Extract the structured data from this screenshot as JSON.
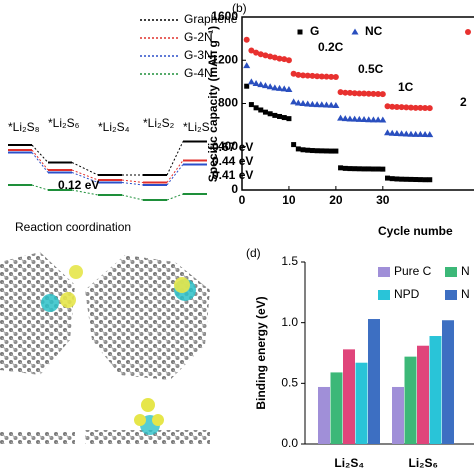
{
  "chart_data": [
    {
      "type": "levels",
      "xlabel": "Reaction coordination",
      "categories": [
        "*Li₂S₈",
        "*Li₂S₆",
        "*Li₂S₄",
        "*Li₂S₂",
        "*Li₂S"
      ],
      "ylim": [
        -1.5,
        0.3
      ],
      "series": [
        {
          "name": "Graphene",
          "color": "#000000",
          "values": [
            -0.2,
            -0.55,
            -0.8,
            -0.8,
            -0.13
          ]
        },
        {
          "name": "G-2N",
          "color": "#e0302c",
          "values": [
            -0.3,
            -0.7,
            -0.9,
            -0.95,
            -0.51
          ]
        },
        {
          "name": "G-3N",
          "color": "#2b4fc9",
          "values": [
            -0.35,
            -0.75,
            -0.95,
            -1.0,
            -0.59
          ]
        },
        {
          "name": "G-4N",
          "color": "#1e8f3a",
          "values": [
            -1.0,
            -1.1,
            -1.2,
            -1.3,
            -1.18
          ]
        }
      ],
      "annotations": [
        {
          "text": "0.67 eV",
          "color": "#000000"
        },
        {
          "text": "0.44 eV",
          "color": "#e0302c"
        },
        {
          "text": "0.41 eV",
          "color": "#2b4fc9"
        },
        {
          "text": "0.12 eV",
          "color": "#1e8f3a"
        }
      ]
    },
    {
      "type": "scatter",
      "title": "(b)",
      "xlabel": "Cycle numbe",
      "ylabel": "Specific capacity (mAh g⁻¹)",
      "xlim": [
        0,
        49
      ],
      "xticks": [
        0,
        10,
        20,
        30
      ],
      "ylim": [
        0,
        1600
      ],
      "yticks": [
        0,
        400,
        800,
        1200,
        1600
      ],
      "x": [
        1,
        2,
        3,
        4,
        5,
        6,
        7,
        8,
        9,
        10,
        11,
        12,
        13,
        14,
        15,
        16,
        17,
        18,
        19,
        20,
        21,
        22,
        23,
        24,
        25,
        26,
        27,
        28,
        29,
        30,
        31,
        32,
        33,
        34,
        35,
        36,
        37,
        38,
        39,
        40
      ],
      "series": [
        {
          "name": "G",
          "color": "#000000",
          "marker": "square",
          "values": [
            960,
            790,
            760,
            740,
            720,
            705,
            690,
            680,
            670,
            660,
            420,
            380,
            372,
            368,
            365,
            363,
            362,
            361,
            360,
            360,
            205,
            200,
            198,
            197,
            196,
            195,
            195,
            194,
            194,
            193,
            110,
            105,
            102,
            100,
            99,
            98,
            97,
            96,
            95,
            95
          ]
        },
        {
          "name": "NC",
          "color": "#2a4fbf",
          "marker": "triangle",
          "values": [
            1150,
            1000,
            985,
            975,
            965,
            955,
            945,
            940,
            935,
            930,
            815,
            805,
            800,
            795,
            792,
            790,
            788,
            786,
            784,
            782,
            665,
            660,
            657,
            655,
            653,
            652,
            650,
            649,
            648,
            647,
            530,
            525,
            522,
            520,
            518,
            516,
            515,
            514,
            513,
            512
          ]
        },
        {
          "color": "#e8312f",
          "marker": "circle",
          "values": [
            1390,
            1290,
            1270,
            1255,
            1245,
            1235,
            1225,
            1215,
            1210,
            1200,
            1075,
            1065,
            1060,
            1058,
            1055,
            1052,
            1050,
            1048,
            1046,
            1045,
            905,
            900,
            898,
            895,
            893,
            892,
            890,
            889,
            888,
            887,
            775,
            770,
            768,
            766,
            764,
            762,
            760,
            759,
            758,
            757
          ]
        }
      ],
      "annotations": [
        "0.2C",
        "0.5C",
        "1C",
        "2"
      ]
    },
    {
      "type": "bar",
      "title": "(d)",
      "ylabel": "Binding energy (eV)",
      "categories": [
        "Li₂S₄",
        "Li₂S₆"
      ],
      "ylim": [
        0,
        1.5
      ],
      "yticks": [
        {
          "value": 0,
          "label": "0.0"
        },
        {
          "value": 0.5,
          "label": "0.5"
        },
        {
          "value": 1,
          "label": "1.0"
        },
        {
          "value": 1.5,
          "label": "1.5"
        }
      ],
      "series": [
        {
          "name": "Pure C",
          "color": "#a08fd8",
          "values": [
            0.47,
            0.47
          ]
        },
        {
          "name": "N",
          "color": "#3cb878",
          "values": [
            0.59,
            0.72
          ]
        },
        {
          "color": "#e0457b",
          "values": [
            0.78,
            0.81
          ]
        },
        {
          "name": "NPD",
          "color": "#29c4d8",
          "values": [
            0.67,
            0.89
          ]
        },
        {
          "name": "N",
          "color": "#3d6fc2",
          "values": [
            1.03,
            1.02
          ]
        }
      ]
    }
  ]
}
